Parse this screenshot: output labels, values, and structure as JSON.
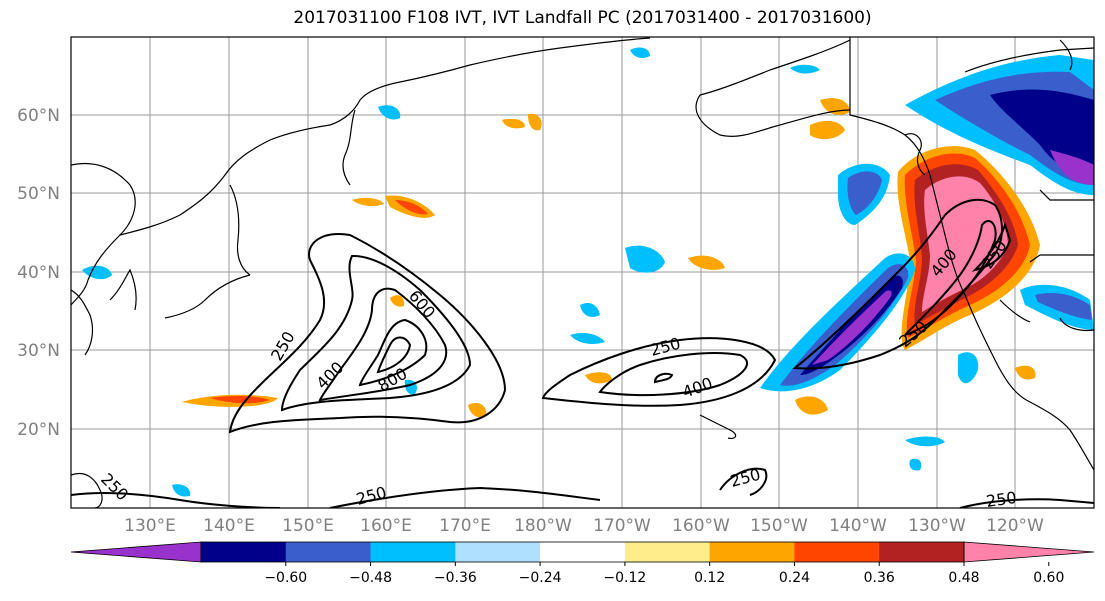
{
  "title": "2017031100 F108 IVT, IVT Landfall PC (2017031400 - 2017031600)",
  "lat_labels": [
    "60°N",
    "50°N",
    "40°N",
    "30°N",
    "20°N"
  ],
  "lon_labels": [
    "130°E",
    "140°E",
    "150°E",
    "160°E",
    "170°E",
    "180°W",
    "170°W",
    "160°W",
    "150°W",
    "140°W",
    "130°W",
    "120°W"
  ],
  "colorbar": {
    "colors": [
      "#9932cc",
      "#00008b",
      "#3a5fcd",
      "#00bfff",
      "#afe0ff",
      "#ffffff",
      "#ffec8b",
      "#ffa500",
      "#ff4500",
      "#b22222",
      "#ff82ab"
    ],
    "tick_labels": [
      "−0.60",
      "−0.48",
      "−0.36",
      "−0.24",
      "−0.12",
      "0.12",
      "0.24",
      "0.36",
      "0.48",
      "0.60"
    ]
  },
  "contour_labels": [
    "250",
    "400",
    "600",
    "800",
    "250",
    "400",
    "250",
    "250",
    "250",
    "250",
    "250",
    "400",
    "250"
  ]
}
